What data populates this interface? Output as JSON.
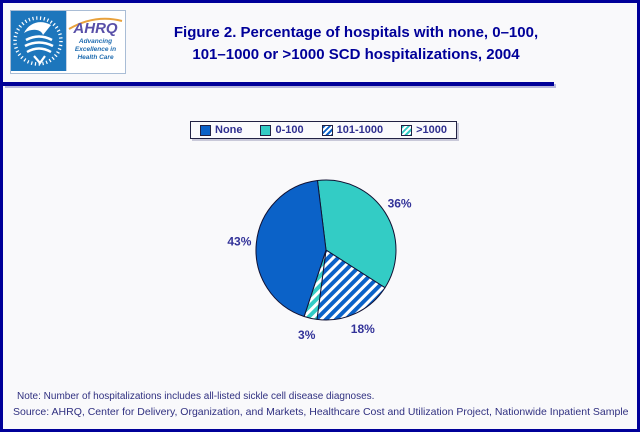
{
  "header": {
    "title_line1": "Figure 2. Percentage of hospitals with none, 0–100,",
    "title_line2": "101–1000 or >1000 SCD hospitalizations, 2004"
  },
  "logo": {
    "acronym": "AHRQ",
    "tagline_lines": [
      "Advancing",
      "Excellence in",
      "Health Care"
    ]
  },
  "colors": {
    "navy": "#000099",
    "pie_blue": "#0B62C8",
    "pie_teal": "#33CCC5",
    "percent_label": "#333399",
    "legend_text": "#2F2F8F",
    "hhs_blue": "#1D76BC",
    "ahrq_purple": "#584FA8",
    "arc_orange": "#E8A13C"
  },
  "chart_data": {
    "type": "pie",
    "title": "Percentage of hospitals with none, 0–100, 101–1000 or >1000 SCD hospitalizations, 2004",
    "legend_position": "top",
    "start_angle_deg": -7,
    "draw_order": [
      1,
      2,
      3,
      0
    ],
    "slices": [
      {
        "label": "None",
        "value": 43,
        "display": "43%",
        "color": "#0B62C8",
        "pattern": "solid"
      },
      {
        "label": "0-100",
        "value": 36,
        "display": "36%",
        "color": "#33CCC5",
        "pattern": "solid"
      },
      {
        "label": "101-1000",
        "value": 18,
        "display": "18%",
        "color": "#0B62C8",
        "pattern": "hatch"
      },
      {
        "label": ">1000",
        "value": 3,
        "display": "3%",
        "color": "#33CCC5",
        "pattern": "hatch"
      }
    ]
  },
  "footer": {
    "note": "Note: Number of hospitalizations includes all-listed sickle cell disease diagnoses.",
    "source": "Source: AHRQ, Center for Delivery, Organization, and Markets, Healthcare Cost and Utilization Project, Nationwide Inpatient Sample"
  }
}
